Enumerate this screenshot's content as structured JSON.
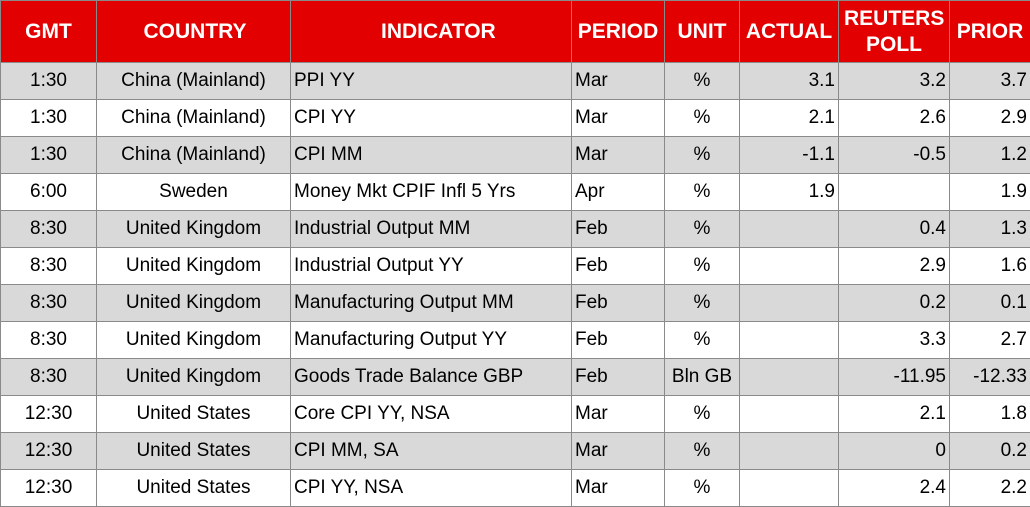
{
  "table": {
    "header": [
      "GMT",
      "COUNTRY",
      "INDICATOR",
      "PERIOD",
      "UNIT",
      "ACTUAL",
      "REUTERS POLL",
      "PRIOR"
    ],
    "rows": [
      [
        "1:30",
        "China (Mainland)",
        "PPI YY",
        "Mar",
        "%",
        "3.1",
        "3.2",
        "3.7"
      ],
      [
        "1:30",
        "China (Mainland)",
        "CPI YY",
        "Mar",
        "%",
        "2.1",
        "2.6",
        "2.9"
      ],
      [
        "1:30",
        "China (Mainland)",
        "CPI MM",
        "Mar",
        "%",
        "-1.1",
        "-0.5",
        "1.2"
      ],
      [
        "6:00",
        "Sweden",
        "Money Mkt CPIF Infl 5 Yrs",
        "Apr",
        "%",
        "1.9",
        null,
        "1.9"
      ],
      [
        "8:30",
        "United Kingdom",
        "Industrial Output MM",
        "Feb",
        "%",
        null,
        "0.4",
        "1.3"
      ],
      [
        "8:30",
        "United Kingdom",
        "Industrial Output YY",
        "Feb",
        "%",
        null,
        "2.9",
        "1.6"
      ],
      [
        "8:30",
        "United Kingdom",
        "Manufacturing Output MM",
        "Feb",
        "%",
        null,
        "0.2",
        "0.1"
      ],
      [
        "8:30",
        "United Kingdom",
        "Manufacturing Output YY",
        "Feb",
        "%",
        null,
        "3.3",
        "2.7"
      ],
      [
        "8:30",
        "United Kingdom",
        "Goods Trade Balance GBP",
        "Feb",
        "Bln GB",
        null,
        "-11.95",
        "-12.33"
      ],
      [
        "12:30",
        "United States",
        "Core CPI YY, NSA",
        "Mar",
        "%",
        null,
        "2.1",
        "1.8"
      ],
      [
        "12:30",
        "United States",
        "CPI MM, SA",
        "Mar",
        "%",
        null,
        "0",
        "0.2"
      ],
      [
        "12:30",
        "United States",
        "CPI YY, NSA",
        "Mar",
        "%",
        null,
        "2.4",
        "2.2"
      ]
    ]
  }
}
